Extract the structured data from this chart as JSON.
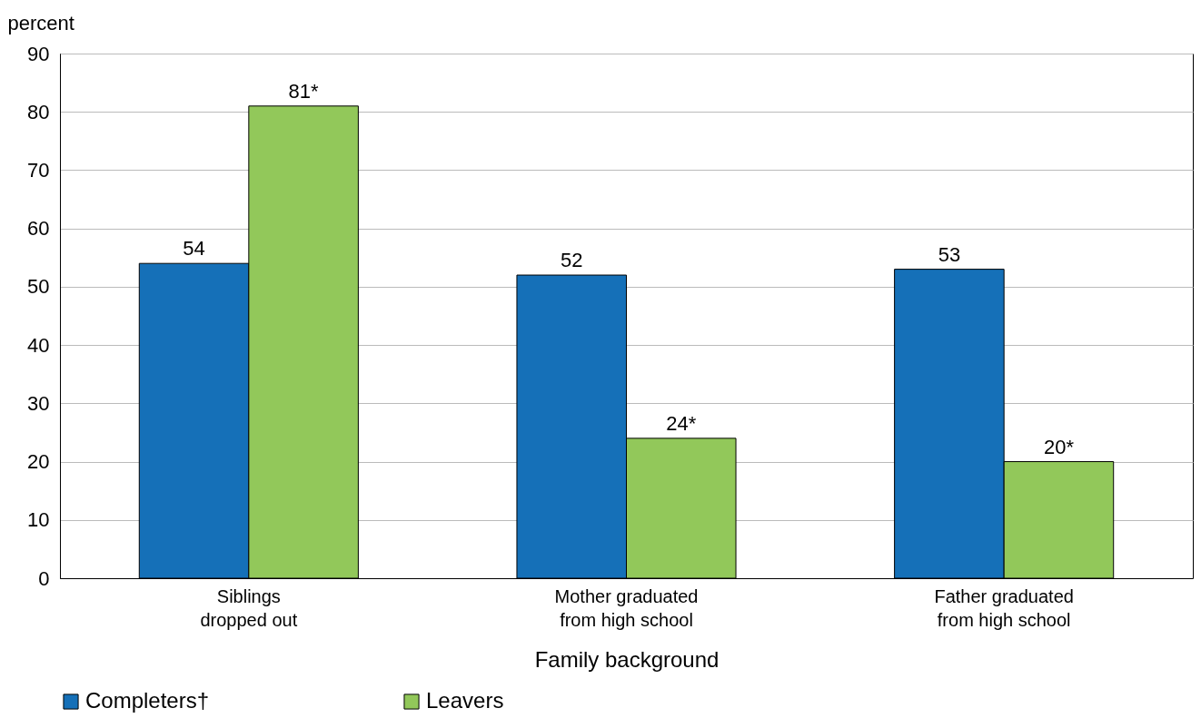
{
  "chart_data": {
    "type": "bar",
    "xlabel": "Family background",
    "ylabel": "percent",
    "categories": [
      "Siblings\ndropped out",
      "Mother graduated\nfrom high school",
      "Father graduated\nfrom high school"
    ],
    "series": [
      {
        "name": "Completers†",
        "color": "#1570b8",
        "values": [
          54,
          52,
          53
        ],
        "value_labels": [
          "54",
          "52",
          "53"
        ]
      },
      {
        "name": "Leavers",
        "color": "#92c85a",
        "values": [
          81,
          24,
          20
        ],
        "value_labels": [
          "81*",
          "24*",
          "20*"
        ]
      }
    ],
    "ylim": [
      0,
      90
    ],
    "yticks": [
      0,
      10,
      20,
      30,
      40,
      50,
      60,
      70,
      80,
      90
    ],
    "grid": "y",
    "legend": "bottom"
  }
}
